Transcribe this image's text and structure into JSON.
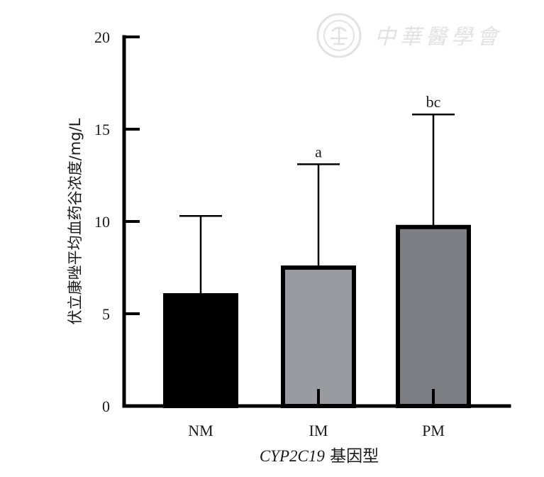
{
  "chart_data": {
    "type": "bar",
    "categories": [
      "NM",
      "IM",
      "PM"
    ],
    "values": [
      6.0,
      7.5,
      9.7
    ],
    "error_upper": [
      10.3,
      13.1,
      15.8
    ],
    "annotations": [
      "",
      "a",
      "bc"
    ],
    "colors": [
      "#000000",
      "#999ba0",
      "#7d7f84"
    ],
    "xlabel_italic": "CYP2C19",
    "xlabel_rest": " 基因型",
    "ylabel": "伏立康唑平均血药谷浓度/mg/L",
    "ylim": [
      0,
      20
    ],
    "yticks": [
      0,
      5,
      10,
      15,
      20
    ],
    "grid": false,
    "legend": "none"
  },
  "watermark": {
    "text": "中華醫學會",
    "logo": "society-seal-icon"
  }
}
